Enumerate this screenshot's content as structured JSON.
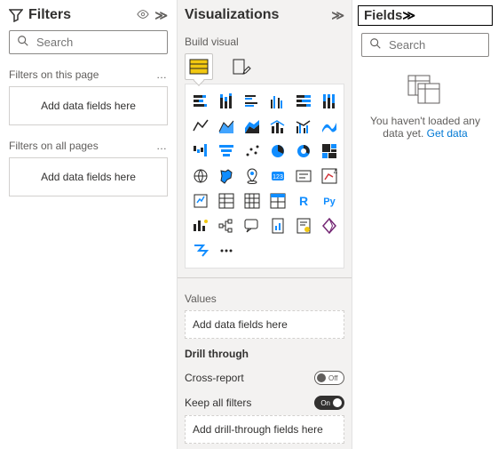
{
  "filters": {
    "title": "Filters",
    "search_placeholder": "Search",
    "this_page_label": "Filters on this page",
    "all_pages_label": "Filters on all pages",
    "drop_hint": "Add data fields here"
  },
  "viz": {
    "title": "Visualizations",
    "build_label": "Build visual",
    "values_label": "Values",
    "values_hint": "Add data fields here",
    "drill_label": "Drill through",
    "cross_report_label": "Cross-report",
    "cross_report_state": "Off",
    "keep_filters_label": "Keep all filters",
    "keep_filters_state": "On",
    "drill_hint": "Add drill-through fields here",
    "icons": [
      "stacked-bar",
      "stacked-column",
      "clustered-bar",
      "clustered-column",
      "100-stacked-bar",
      "100-stacked-column",
      "line",
      "area",
      "stacked-area",
      "line-stacked-column",
      "line-clustered-column",
      "ribbon",
      "waterfall",
      "funnel",
      "scatter",
      "pie",
      "donut",
      "treemap",
      "map",
      "filled-map",
      "azure-map",
      "gauge",
      "card",
      "multi-row-card",
      "kpi",
      "slicer",
      "table",
      "matrix",
      "r-visual",
      "python-visual",
      "key-influencers",
      "decomposition-tree",
      "qa",
      "paginated",
      "narrative",
      "power-apps",
      "power-automate",
      "more"
    ]
  },
  "fields": {
    "title": "Fields",
    "search_placeholder": "Search",
    "empty_msg": "You haven't loaded any data yet. ",
    "get_data": "Get data"
  },
  "colors": {
    "accent": "#118dff",
    "yellow": "#f2c811",
    "ink": "#252423",
    "muted": "#605e5c"
  }
}
